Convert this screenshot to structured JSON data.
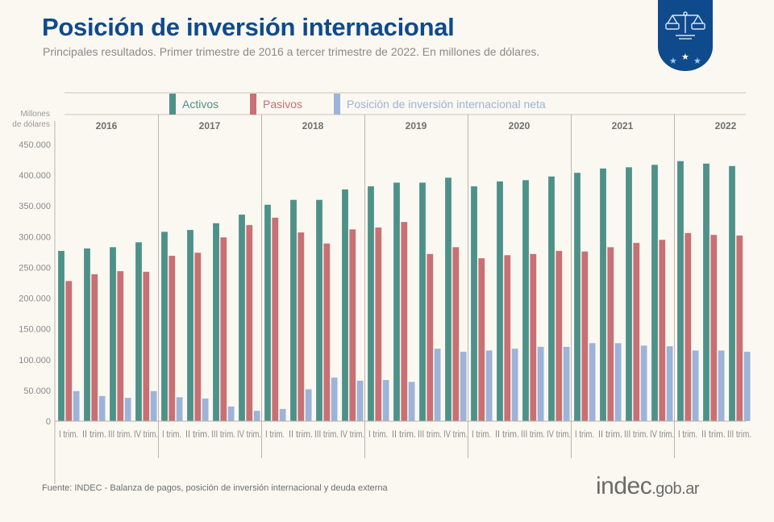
{
  "header": {
    "title": "Posición de inversión internacional",
    "subtitle": "Principales resultados. Primer trimestre de 2016 a tercer trimestre de 2022. En millones de dólares."
  },
  "badge": {
    "icon": "scale-balance-icon",
    "stars": 3,
    "color": "#0f4a8c"
  },
  "footer": {
    "source": "Fuente: INDEC -  Balanza de pagos, posición de inversión internacional y deuda externa",
    "logo_main": "indec",
    "logo_suffix": ".gob.ar"
  },
  "chart_data": {
    "type": "bar",
    "title": "Posición de inversión internacional",
    "ylabel": "Millones de dólares",
    "ylabel_lines": [
      "Millones",
      "de dólares"
    ],
    "xlabel": "",
    "ylim": [
      0,
      450000
    ],
    "yticks": [
      0,
      50000,
      100000,
      150000,
      200000,
      250000,
      300000,
      350000,
      400000,
      450000
    ],
    "ytick_labels": [
      "0",
      "50.000",
      "100.000",
      "150.000",
      "200.000",
      "250.000",
      "300.000",
      "350.000",
      "400.000",
      "450.000"
    ],
    "grid": false,
    "legend_position": "top",
    "groups": [
      {
        "year": "2016",
        "quarters": [
          "I trim.",
          "II trim.",
          "III trim.",
          "IV trim."
        ]
      },
      {
        "year": "2017",
        "quarters": [
          "I trim.",
          "II trim.",
          "III trim.",
          "IV trim."
        ]
      },
      {
        "year": "2018",
        "quarters": [
          "I trim.",
          "II trim.",
          "III trim.",
          "IV trim."
        ]
      },
      {
        "year": "2019",
        "quarters": [
          "I trim.",
          "II trim.",
          "III trim.",
          "IV trim."
        ]
      },
      {
        "year": "2020",
        "quarters": [
          "I trim.",
          "II trim.",
          "III trim.",
          "IV trim."
        ]
      },
      {
        "year": "2021",
        "quarters": [
          "I trim.",
          "II trim.",
          "III trim.",
          "IV trim."
        ]
      },
      {
        "year": "2022",
        "quarters": [
          "I trim.",
          "II trim.",
          "III trim."
        ]
      }
    ],
    "series": [
      {
        "name": "Activos",
        "color": "#4e9189",
        "values": [
          277000,
          281000,
          283000,
          291000,
          308000,
          311000,
          322000,
          336000,
          352000,
          360000,
          360000,
          377000,
          382000,
          388000,
          388000,
          396000,
          382000,
          390000,
          392000,
          398000,
          404000,
          411000,
          413000,
          417000,
          423000,
          419000,
          415000
        ]
      },
      {
        "name": "Pasivos",
        "color": "#c87073",
        "values": [
          228000,
          239000,
          244000,
          243000,
          269000,
          274000,
          299000,
          319000,
          331000,
          307000,
          289000,
          312000,
          315000,
          324000,
          272000,
          283000,
          265000,
          270000,
          272000,
          277000,
          276000,
          283000,
          290000,
          295000,
          306000,
          303000,
          302000
        ]
      },
      {
        "name": "Posición de inversión internacional neta",
        "color": "#9db3d8",
        "values": [
          49000,
          41000,
          38000,
          49000,
          39000,
          37000,
          24000,
          17000,
          20000,
          52000,
          71000,
          66000,
          67000,
          64000,
          118000,
          113000,
          115000,
          118000,
          121000,
          121000,
          127000,
          127000,
          123000,
          122000,
          115000,
          115000,
          113000
        ]
      }
    ]
  }
}
